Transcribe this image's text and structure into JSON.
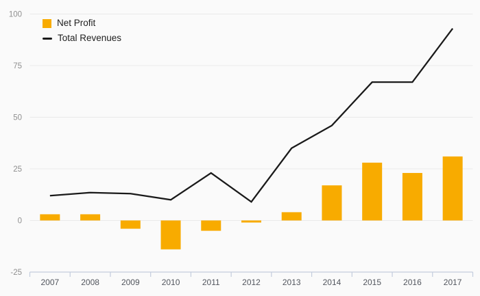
{
  "chart_data": {
    "type": "combo",
    "title": "",
    "categories": [
      "2007",
      "2008",
      "2009",
      "2010",
      "2011",
      "2012",
      "2013",
      "2014",
      "2015",
      "2016",
      "2017"
    ],
    "series": [
      {
        "name": "Net Profit",
        "type": "bar",
        "color": "#F8AB00",
        "values": [
          3,
          3,
          -4,
          -14,
          -5,
          -1,
          4,
          17,
          28,
          23,
          31
        ]
      },
      {
        "name": "Total Revenues",
        "type": "line",
        "color": "#1a1a1a",
        "values": [
          12,
          13.5,
          13,
          10,
          23,
          9,
          35,
          46,
          67,
          67,
          93
        ]
      }
    ],
    "xlabel": "",
    "ylabel": "",
    "ylim": [
      -25,
      100
    ],
    "yticks": [
      100,
      75,
      50,
      25,
      0,
      -25
    ],
    "grid": "horizontal",
    "legend_position": "top-left",
    "colors": {
      "background": "#fafafa",
      "gridline": "#e9e9e9",
      "axis_line": "#c3ccdd",
      "y_tick_label": "#8f8f8f",
      "x_tick_label": "#51555d"
    }
  },
  "legend": {
    "items": [
      {
        "label": "Net Profit"
      },
      {
        "label": "Total Revenues"
      }
    ]
  }
}
